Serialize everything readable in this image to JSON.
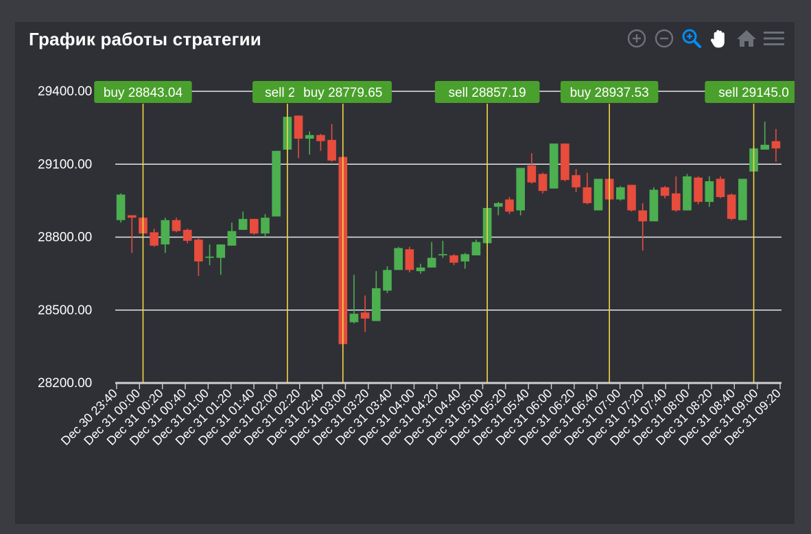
{
  "panel": {
    "title": "График работы стратегии"
  },
  "toolbar": {
    "items": [
      {
        "name": "zoom-in-icon",
        "color": "#6e7079"
      },
      {
        "name": "zoom-out-icon",
        "color": "#6e7079"
      },
      {
        "name": "selection-zoom-icon",
        "color": "#008ffb"
      },
      {
        "name": "pan-hand-icon",
        "color": "#ffffff"
      },
      {
        "name": "reset-home-icon",
        "color": "#6e7079"
      },
      {
        "name": "menu-icon",
        "color": "#6e7079"
      }
    ]
  },
  "chart_data": {
    "type": "candlestick",
    "title": "График работы стратегии",
    "ylim": [
      28200,
      29400
    ],
    "y_ticks": [
      "29400.00",
      "29100.00",
      "28800.00",
      "28500.00",
      "28200.00"
    ],
    "x_ticks": [
      "Dec 30 23:40",
      "Dec 31 00:00",
      "Dec 31 00:20",
      "Dec 31 00:40",
      "Dec 31 01:00",
      "Dec 31 01:20",
      "Dec 31 01:40",
      "Dec 31 02:00",
      "Dec 31 02:20",
      "Dec 31 02:40",
      "Dec 31 03:00",
      "Dec 31 03:20",
      "Dec 31 03:40",
      "Dec 31 04:00",
      "Dec 31 04:20",
      "Dec 31 04:40",
      "Dec 31 05:00",
      "Dec 31 05:20",
      "Dec 31 05:40",
      "Dec 31 06:00",
      "Dec 31 06:20",
      "Dec 31 06:40",
      "Dec 31 07:00",
      "Dec 31 07:20",
      "Dec 31 07:40",
      "Dec 31 08:00",
      "Dec 31 08:20",
      "Dec 31 08:40",
      "Dec 31 09:00",
      "Dec 31 09:20"
    ],
    "grid": true,
    "colors": {
      "up": "#4caf50",
      "down": "#e74c3c",
      "annotation_line": "#f5d742",
      "annotation_label": "#4aa02c",
      "grid": "#e8e8e8",
      "axis_text": "#ffffff"
    },
    "candles": [
      {
        "t": "Dec 30 23:40",
        "o": 28870,
        "h": 28980,
        "l": 28860,
        "c": 28975
      },
      {
        "t": "Dec 30 23:50",
        "o": 28890,
        "h": 28890,
        "l": 28735,
        "c": 28880
      },
      {
        "t": "Dec 31 00:00",
        "o": 28880,
        "h": 28885,
        "l": 28815,
        "c": 28815
      },
      {
        "t": "Dec 31 00:10",
        "o": 28820,
        "h": 28835,
        "l": 28760,
        "c": 28765
      },
      {
        "t": "Dec 31 00:20",
        "o": 28770,
        "h": 28880,
        "l": 28735,
        "c": 28870
      },
      {
        "t": "Dec 31 00:30",
        "o": 28870,
        "h": 28880,
        "l": 28820,
        "c": 28825
      },
      {
        "t": "Dec 31 00:40",
        "o": 28830,
        "h": 28835,
        "l": 28775,
        "c": 28785
      },
      {
        "t": "Dec 31 00:50",
        "o": 28790,
        "h": 28795,
        "l": 28640,
        "c": 28700
      },
      {
        "t": "Dec 31 01:00",
        "o": 28715,
        "h": 28770,
        "l": 28685,
        "c": 28720
      },
      {
        "t": "Dec 31 01:10",
        "o": 28715,
        "h": 28770,
        "l": 28645,
        "c": 28770
      },
      {
        "t": "Dec 31 01:20",
        "o": 28765,
        "h": 28860,
        "l": 28765,
        "c": 28825
      },
      {
        "t": "Dec 31 01:30",
        "o": 28830,
        "h": 28905,
        "l": 28830,
        "c": 28875
      },
      {
        "t": "Dec 31 01:40",
        "o": 28875,
        "h": 28875,
        "l": 28810,
        "c": 28815
      },
      {
        "t": "Dec 31 01:50",
        "o": 28815,
        "h": 28895,
        "l": 28800,
        "c": 28880
      },
      {
        "t": "Dec 31 02:00",
        "o": 28885,
        "h": 29155,
        "l": 28885,
        "c": 29155
      },
      {
        "t": "Dec 31 02:10",
        "o": 29160,
        "h": 29295,
        "l": 29095,
        "c": 29295
      },
      {
        "t": "Dec 31 02:20",
        "o": 29300,
        "h": 29300,
        "l": 29125,
        "c": 29205
      },
      {
        "t": "Dec 31 02:30",
        "o": 29205,
        "h": 29235,
        "l": 29140,
        "c": 29220
      },
      {
        "t": "Dec 31 02:40",
        "o": 29220,
        "h": 29225,
        "l": 29155,
        "c": 29195
      },
      {
        "t": "Dec 31 02:50",
        "o": 29200,
        "h": 29265,
        "l": 29110,
        "c": 29115
      },
      {
        "t": "Dec 31 03:00",
        "o": 29130,
        "h": 29130,
        "l": 28355,
        "c": 28360
      },
      {
        "t": "Dec 31 03:10",
        "o": 28450,
        "h": 28645,
        "l": 28445,
        "c": 28485
      },
      {
        "t": "Dec 31 03:20",
        "o": 28490,
        "h": 28560,
        "l": 28410,
        "c": 28465
      },
      {
        "t": "Dec 31 03:30",
        "o": 28455,
        "h": 28660,
        "l": 28455,
        "c": 28590
      },
      {
        "t": "Dec 31 03:40",
        "o": 28580,
        "h": 28680,
        "l": 28570,
        "c": 28665
      },
      {
        "t": "Dec 31 03:50",
        "o": 28665,
        "h": 28760,
        "l": 28665,
        "c": 28755
      },
      {
        "t": "Dec 31 04:00",
        "o": 28750,
        "h": 28760,
        "l": 28655,
        "c": 28665
      },
      {
        "t": "Dec 31 04:10",
        "o": 28660,
        "h": 28690,
        "l": 28650,
        "c": 28675
      },
      {
        "t": "Dec 31 04:20",
        "o": 28675,
        "h": 28780,
        "l": 28675,
        "c": 28715
      },
      {
        "t": "Dec 31 04:30",
        "o": 28725,
        "h": 28785,
        "l": 28715,
        "c": 28730
      },
      {
        "t": "Dec 31 04:40",
        "o": 28725,
        "h": 28730,
        "l": 28685,
        "c": 28695
      },
      {
        "t": "Dec 31 04:50",
        "o": 28700,
        "h": 28735,
        "l": 28670,
        "c": 28730
      },
      {
        "t": "Dec 31 05:00",
        "o": 28725,
        "h": 28790,
        "l": 28725,
        "c": 28780
      },
      {
        "t": "Dec 31 05:10",
        "o": 28775,
        "h": 28920,
        "l": 28775,
        "c": 28920
      },
      {
        "t": "Dec 31 05:20",
        "o": 28925,
        "h": 28945,
        "l": 28890,
        "c": 28940
      },
      {
        "t": "Dec 31 05:30",
        "o": 28955,
        "h": 28965,
        "l": 28895,
        "c": 28905
      },
      {
        "t": "Dec 31 05:40",
        "o": 28910,
        "h": 29080,
        "l": 28890,
        "c": 29085
      },
      {
        "t": "Dec 31 05:50",
        "o": 29095,
        "h": 29145,
        "l": 29020,
        "c": 29025
      },
      {
        "t": "Dec 31 06:00",
        "o": 29060,
        "h": 29065,
        "l": 28980,
        "c": 28990
      },
      {
        "t": "Dec 31 06:10",
        "o": 29000,
        "h": 29185,
        "l": 29000,
        "c": 29185
      },
      {
        "t": "Dec 31 06:20",
        "o": 29185,
        "h": 29185,
        "l": 29030,
        "c": 29035
      },
      {
        "t": "Dec 31 06:30",
        "o": 29055,
        "h": 29080,
        "l": 28985,
        "c": 29005
      },
      {
        "t": "Dec 31 06:40",
        "o": 29005,
        "h": 29065,
        "l": 28935,
        "c": 28940
      },
      {
        "t": "Dec 31 06:50",
        "o": 28910,
        "h": 29040,
        "l": 28910,
        "c": 29040
      },
      {
        "t": "Dec 31 07:00",
        "o": 29040,
        "h": 29040,
        "l": 28950,
        "c": 28955
      },
      {
        "t": "Dec 31 07:10",
        "o": 28955,
        "h": 29010,
        "l": 28950,
        "c": 29005
      },
      {
        "t": "Dec 31 07:20",
        "o": 29015,
        "h": 29015,
        "l": 28905,
        "c": 28910
      },
      {
        "t": "Dec 31 07:30",
        "o": 28910,
        "h": 28940,
        "l": 28745,
        "c": 28865
      },
      {
        "t": "Dec 31 07:40",
        "o": 28865,
        "h": 29005,
        "l": 28865,
        "c": 28995
      },
      {
        "t": "Dec 31 07:50",
        "o": 29005,
        "h": 29010,
        "l": 28960,
        "c": 28970
      },
      {
        "t": "Dec 31 08:00",
        "o": 28980,
        "h": 29050,
        "l": 28905,
        "c": 28910
      },
      {
        "t": "Dec 31 08:10",
        "o": 28910,
        "h": 29060,
        "l": 28910,
        "c": 29050
      },
      {
        "t": "Dec 31 08:20",
        "o": 29045,
        "h": 29050,
        "l": 28935,
        "c": 28945
      },
      {
        "t": "Dec 31 08:30",
        "o": 28945,
        "h": 29050,
        "l": 28925,
        "c": 29030
      },
      {
        "t": "Dec 31 08:40",
        "o": 29040,
        "h": 29050,
        "l": 28960,
        "c": 28965
      },
      {
        "t": "Dec 31 08:50",
        "o": 28975,
        "h": 28980,
        "l": 28870,
        "c": 28875
      },
      {
        "t": "Dec 31 09:00",
        "o": 28870,
        "h": 29035,
        "l": 28870,
        "c": 29040
      },
      {
        "t": "Dec 31 09:10",
        "o": 29070,
        "h": 29175,
        "l": 29070,
        "c": 29165
      },
      {
        "t": "Dec 31 09:15",
        "o": 29160,
        "h": 29275,
        "l": 29160,
        "c": 29180
      },
      {
        "t": "Dec 31 09:20",
        "o": 29195,
        "h": 29245,
        "l": 29110,
        "c": 29165
      }
    ],
    "annotations": [
      {
        "label": "buy 28843.04",
        "candle_index": 2
      },
      {
        "label": "sell 291",
        "candle_index": 15
      },
      {
        "label": "buy 28779.65",
        "candle_index": 20
      },
      {
        "label": "sell 28857.19",
        "candle_index": 33
      },
      {
        "label": "buy 28937.53",
        "candle_index": 44
      },
      {
        "label": "sell 29145.0",
        "candle_index": 57
      }
    ]
  }
}
